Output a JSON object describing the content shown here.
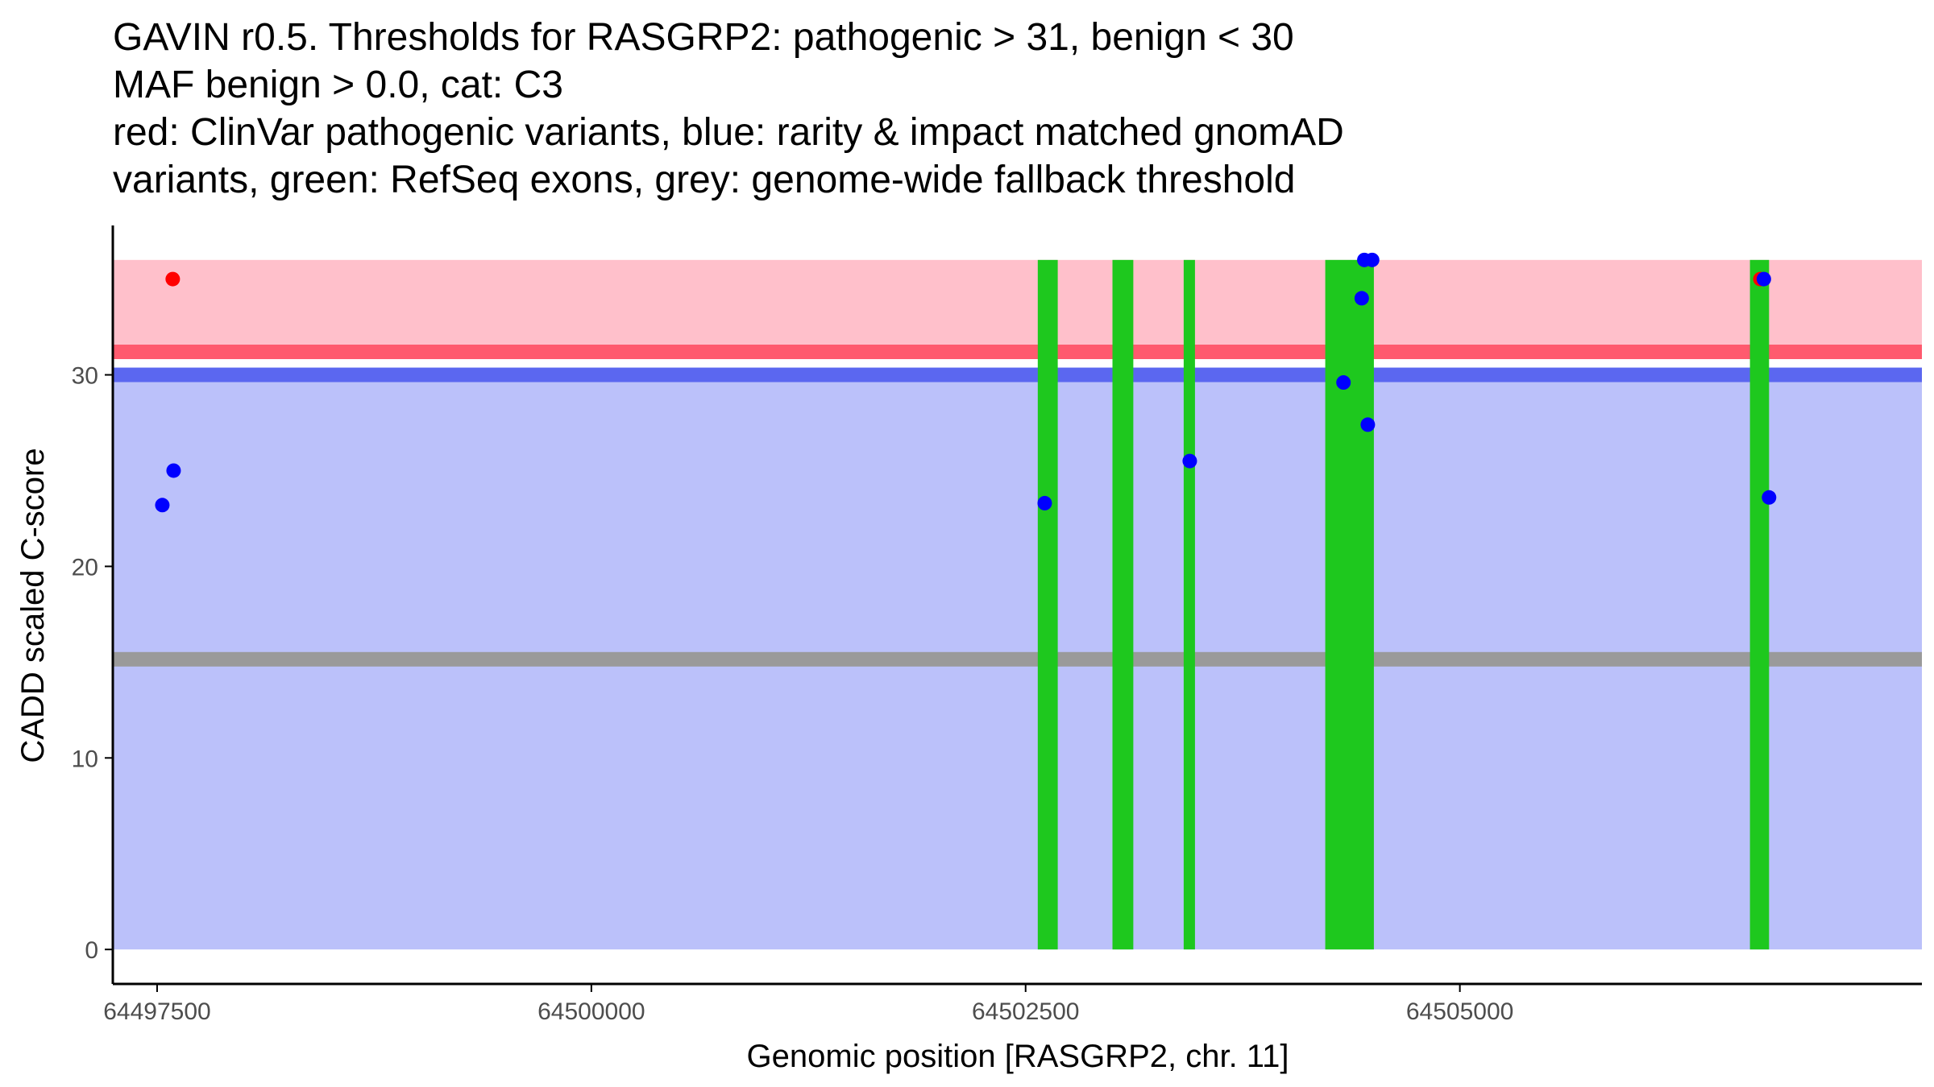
{
  "chart_data": {
    "type": "scatter",
    "title_lines": [
      "GAVIN r0.5. Thresholds for RASGRP2: pathogenic > 31, benign < 30",
      "MAF benign > 0.0, cat: C3",
      "red: ClinVar pathogenic variants, blue: rarity & impact matched gnomAD",
      "variants, green: RefSeq exons, grey: genome-wide fallback threshold"
    ],
    "xlabel": "Genomic position [RASGRP2, chr. 11]",
    "ylabel": "CADD scaled C-score",
    "xlim": [
      64497245,
      64507660
    ],
    "ylim": [
      -1.8,
      37.8
    ],
    "x_ticks": [
      64497500,
      64500000,
      64502500,
      64505000
    ],
    "x_tick_labels": [
      "64497500",
      "64500000",
      "64502500",
      "64505000"
    ],
    "y_ticks": [
      0,
      10,
      20,
      30
    ],
    "y_tick_labels": [
      "0",
      "10",
      "20",
      "30"
    ],
    "colors": {
      "pathogenic_zone": "#ffc0cb",
      "benign_zone": "#bbc1fa",
      "pathogenic_line": "#ff5a6e",
      "benign_line": "#5b67f0",
      "fallback_line": "#9a9a9a",
      "exon": "#1ec81e",
      "pathogenic_point": "#ff0000",
      "benign_point": "#0000ff",
      "axis": "#000000"
    },
    "regions": {
      "data_x_range": [
        64497245,
        64507660
      ],
      "pathogenic_zone": [
        31,
        36
      ],
      "benign_zone": [
        0,
        30
      ],
      "pathogenic_threshold": 31.2,
      "benign_threshold": 30.0,
      "fallback_threshold": 15.15
    },
    "exons": [
      {
        "start": 64502570,
        "end": 64502685
      },
      {
        "start": 64503000,
        "end": 64503120
      },
      {
        "start": 64503410,
        "end": 64503475
      },
      {
        "start": 64504225,
        "end": 64504505
      },
      {
        "start": 64506670,
        "end": 64506780
      }
    ],
    "exon_y_range": [
      0,
      36
    ],
    "series": [
      {
        "name": "ClinVar pathogenic variants",
        "color": "#ff0000",
        "points": [
          {
            "x": 64497590,
            "y": 35.0
          },
          {
            "x": 64506730,
            "y": 35.0
          }
        ]
      },
      {
        "name": "rarity & impact matched gnomAD variants",
        "color": "#0000ff",
        "points": [
          {
            "x": 64497530,
            "y": 23.2
          },
          {
            "x": 64497595,
            "y": 25.0
          },
          {
            "x": 64502610,
            "y": 23.3
          },
          {
            "x": 64503445,
            "y": 25.5
          },
          {
            "x": 64504330,
            "y": 29.6
          },
          {
            "x": 64504435,
            "y": 34.0
          },
          {
            "x": 64504450,
            "y": 36.0
          },
          {
            "x": 64504470,
            "y": 27.4
          },
          {
            "x": 64504495,
            "y": 36.0
          },
          {
            "x": 64506750,
            "y": 35.0
          },
          {
            "x": 64506780,
            "y": 23.6
          }
        ]
      }
    ]
  }
}
